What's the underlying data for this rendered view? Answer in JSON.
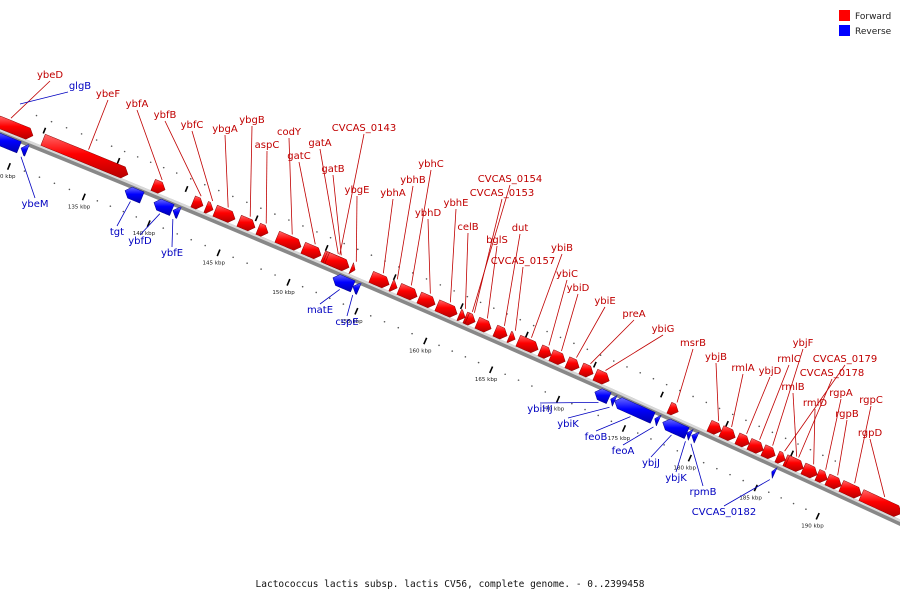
{
  "caption": "Lactococcus lactis subsp. lactis CV56, complete genome. - 0..2399458",
  "legend": {
    "forward": {
      "label": "Forward",
      "color": "#ff0000"
    },
    "reverse": {
      "label": "Reverse",
      "color": "#0000ff"
    }
  },
  "axis_ticks": [
    {
      "label": "130 kbp",
      "major": true
    },
    {
      "label": "135 kbp",
      "major": true
    },
    {
      "label": "140 kbp",
      "major": true
    },
    {
      "label": "145 kbp",
      "major": true
    },
    {
      "label": "150 kbp",
      "major": true
    },
    {
      "label": "155 kbp",
      "major": true
    },
    {
      "label": "160 kbp",
      "major": true
    },
    {
      "label": "165 kbp",
      "major": true
    },
    {
      "label": "170 kbp",
      "major": true
    },
    {
      "label": "175 kbp",
      "major": true
    },
    {
      "label": "180 kbp",
      "major": true
    },
    {
      "label": "185 kbp",
      "major": true
    },
    {
      "label": "190 kbp",
      "major": true
    }
  ],
  "forward_genes": [
    {
      "name": "ybeD",
      "t0": 0.0,
      "t1": 0.0,
      "label_dx": 0,
      "label_dy": 0
    },
    {
      "name": "ybeF"
    },
    {
      "name": "ybfA"
    },
    {
      "name": "ybfB"
    },
    {
      "name": "ybfC"
    },
    {
      "name": "ybgA"
    },
    {
      "name": "ybgB"
    },
    {
      "name": "aspC"
    },
    {
      "name": "codY"
    },
    {
      "name": "gatC"
    },
    {
      "name": "gatA"
    },
    {
      "name": "CVCAS_0143"
    },
    {
      "name": "gatB"
    },
    {
      "name": "ybgE"
    },
    {
      "name": "ybhA"
    },
    {
      "name": "ybhB"
    },
    {
      "name": "ybhC"
    },
    {
      "name": "ybhD"
    },
    {
      "name": "ybhE"
    },
    {
      "name": "celB"
    },
    {
      "name": "CVCAS_0154"
    },
    {
      "name": "CVCAS_0153"
    },
    {
      "name": "bglS"
    },
    {
      "name": "dut"
    },
    {
      "name": "CVCAS_0157"
    },
    {
      "name": "ybiB"
    },
    {
      "name": "ybiC"
    },
    {
      "name": "ybiD"
    },
    {
      "name": "ybiE"
    },
    {
      "name": "preA"
    },
    {
      "name": "ybiG"
    },
    {
      "name": "msrB"
    },
    {
      "name": "ybjB"
    },
    {
      "name": "rmlA"
    },
    {
      "name": "ybjD"
    },
    {
      "name": "rmlC"
    },
    {
      "name": "ybjF"
    },
    {
      "name": "CVCAS_0179"
    },
    {
      "name": "rmlB"
    },
    {
      "name": "CVCAS_0178"
    },
    {
      "name": "rmlD"
    },
    {
      "name": "rgpA"
    },
    {
      "name": "rgpB"
    },
    {
      "name": "rgpC"
    },
    {
      "name": "rgpD"
    }
  ],
  "reverse_genes": [
    {
      "name": "glgB"
    },
    {
      "name": "ybeM"
    },
    {
      "name": "tgt"
    },
    {
      "name": "ybfD"
    },
    {
      "name": "ybfE"
    },
    {
      "name": "matE"
    },
    {
      "name": "cspE"
    },
    {
      "name": "ybiHJ"
    },
    {
      "name": "ybiK"
    },
    {
      "name": "feoB"
    },
    {
      "name": "feoA"
    },
    {
      "name": "ybjJ"
    },
    {
      "name": "ybjK"
    },
    {
      "name": "rpmB"
    },
    {
      "name": "CVCAS_0182"
    }
  ]
}
